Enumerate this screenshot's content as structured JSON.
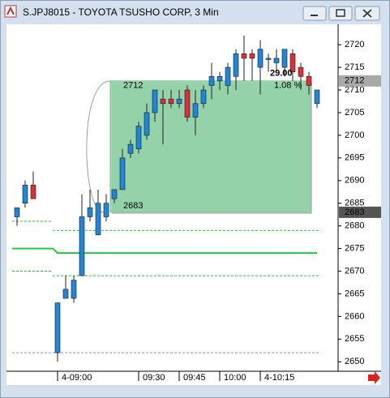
{
  "window_title": "S.JPJ8015 - TOYOTA TSUSHO CORP, 3 Min",
  "chart_data": {
    "type": "candlestick",
    "categories": [
      null,
      null,
      null,
      null,
      null,
      "4-09:00",
      null,
      null,
      null,
      null,
      null,
      null,
      null,
      null,
      null,
      "09:30",
      null,
      null,
      null,
      null,
      "09:45",
      null,
      null,
      null,
      null,
      "10:00",
      null,
      null,
      null,
      null,
      "4-10:15",
      null,
      null,
      null,
      null,
      null,
      null,
      null
    ],
    "open": [
      2682,
      2685,
      2689,
      null,
      null,
      2652,
      2664,
      2664,
      2669,
      2682,
      2678,
      2682,
      2686,
      2688,
      2696,
      2697,
      2700,
      2705,
      2708,
      2708,
      2707,
      2710,
      2704,
      2707,
      2711,
      2712,
      2711,
      2713,
      2718,
      2718,
      2715,
      2717,
      2716,
      2715,
      2718,
      2715,
      2713,
      2707
    ],
    "high": [
      2684,
      2690,
      2692,
      null,
      null,
      2663,
      2669,
      2669,
      2687,
      2688,
      2688,
      2687,
      2688,
      2697,
      2699,
      2703,
      2707,
      2710,
      2710,
      2710,
      2710,
      2711,
      2710,
      2711,
      2716,
      2714,
      2716,
      2719,
      2722,
      2719,
      2721,
      2718,
      2719,
      2719,
      2719,
      2716,
      2714,
      2710
    ],
    "low": [
      2680,
      2684,
      2686,
      null,
      null,
      2650,
      2664,
      2663,
      2669,
      2681,
      2678,
      2681,
      2685,
      2688,
      2695,
      2696,
      2699,
      2703,
      2698,
      2706,
      2706,
      2703,
      2700,
      2706,
      2708,
      2710,
      2709,
      2710,
      2712,
      2712,
      2709,
      2714,
      2714,
      2713,
      2712,
      2710,
      2709,
      2706
    ],
    "close": [
      2684,
      2689,
      2686,
      null,
      null,
      2663,
      2666,
      2668,
      2682,
      2684,
      2685,
      2685,
      2688,
      2695,
      2698,
      2702,
      2705,
      2710,
      2707,
      2707,
      2708,
      2704,
      2707,
      2710,
      2713,
      2713,
      2715,
      2718,
      2717,
      2717,
      2719,
      2717,
      2717,
      2719,
      2714,
      2713,
      2711,
      2710
    ],
    "up_color": "#1f86d9",
    "down_color": "#d9303a",
    "ylim": [
      2647.9,
      2724.5
    ],
    "yticks": [
      2650,
      2655,
      2660,
      2665,
      2670,
      2675,
      2680,
      2685,
      2690,
      2695,
      2700,
      2705,
      2710,
      2715,
      2720
    ],
    "levels": [
      {
        "x": [
          -0.6,
          4.4
        ],
        "values": [
          2681,
          2681
        ],
        "color": "#22c844",
        "dashed": true
      },
      {
        "x": [
          4.4,
          37.4
        ],
        "values": [
          2679,
          2679
        ],
        "color": "#22c844",
        "dashed": true
      },
      {
        "x": [
          -0.6,
          4.4,
          5,
          37
        ],
        "values": [
          2675,
          2675,
          2674,
          2674
        ],
        "color": "#22c844",
        "dashed": false
      },
      {
        "x": [
          -0.6,
          4.4
        ],
        "values": [
          2670,
          2670
        ],
        "color": "#22c844",
        "dashed": true
      },
      {
        "x": [
          4.4,
          37.4
        ],
        "values": [
          2669,
          2669
        ],
        "color": "#22c844",
        "dashed": true
      },
      {
        "x": [
          -0.6,
          37.4
        ],
        "values": [
          2652,
          2652
        ],
        "color": "#999999",
        "dashed": true
      }
    ],
    "box": {
      "x": [
        11.5,
        36.2
      ],
      "top": 2712,
      "bottom": 2683,
      "change": "29.00",
      "percent": "1.08 %",
      "color": "#8fd5a6"
    }
  }
}
